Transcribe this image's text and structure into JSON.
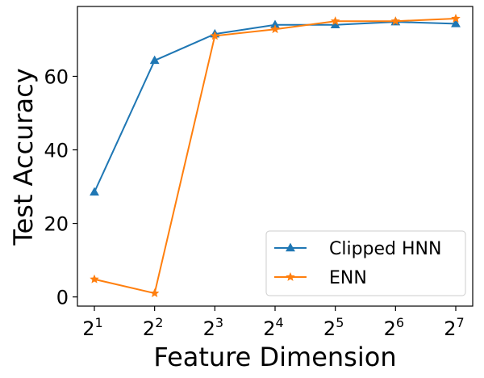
{
  "chart_data": {
    "type": "line",
    "x_tick_base": "2",
    "x_tick_exponents": [
      "1",
      "2",
      "3",
      "4",
      "5",
      "6",
      "7"
    ],
    "x": [
      2,
      4,
      8,
      16,
      32,
      64,
      128
    ],
    "x_scale": "log2",
    "xlabel": "Feature Dimension",
    "ylabel": "Test Accuracy",
    "ylim": [
      -2.5,
      79
    ],
    "y_ticks": [
      0,
      20,
      40,
      60
    ],
    "grid": false,
    "legend_position": "lower-right",
    "series": [
      {
        "name": "Clipped HNN",
        "color": "#1f77b4",
        "marker": "triangle",
        "values": [
          28.5,
          64.3,
          71.5,
          74.0,
          74.0,
          74.8,
          74.3
        ]
      },
      {
        "name": "ENN",
        "color": "#ff7f0e",
        "marker": "star",
        "values": [
          4.8,
          1.0,
          71.0,
          72.8,
          75.0,
          75.0,
          75.7
        ]
      }
    ]
  }
}
